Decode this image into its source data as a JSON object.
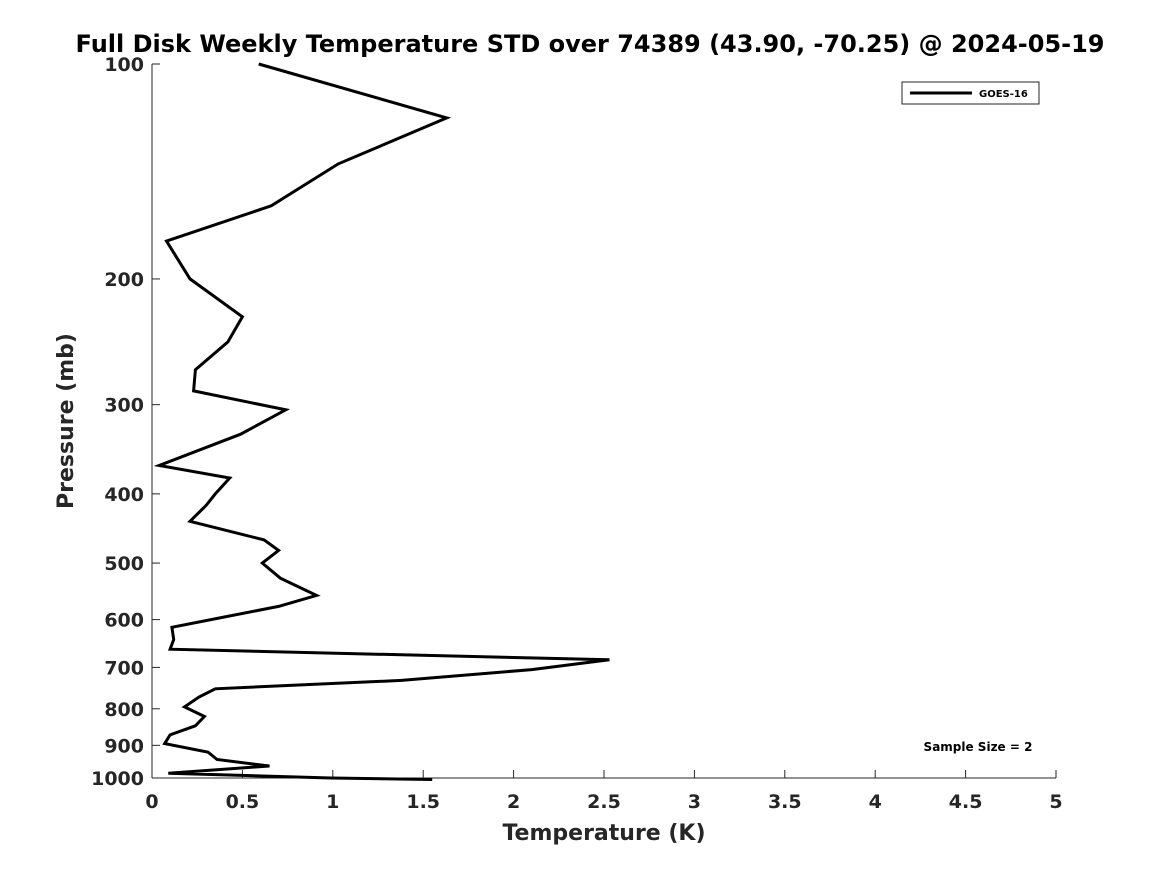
{
  "chart_data": {
    "type": "line",
    "title": "Full Disk Weekly Temperature STD over 74389 (43.90, -70.25) @ 2024-05-19",
    "xlabel": "Temperature (K)",
    "ylabel": "Pressure (mb)",
    "xlim": [
      0,
      5
    ],
    "ylim": [
      100,
      1000
    ],
    "yscale": "log",
    "y_reversed": true,
    "x_ticks": [
      0,
      0.5,
      1,
      1.5,
      2,
      2.5,
      3,
      3.5,
      4,
      4.5,
      5
    ],
    "x_tick_labels": [
      "0",
      "0.5",
      "1",
      "1.5",
      "2",
      "2.5",
      "3",
      "3.5",
      "4",
      "4.5",
      "5"
    ],
    "y_ticks": [
      100,
      200,
      300,
      400,
      500,
      600,
      700,
      800,
      900,
      1000
    ],
    "y_tick_labels": [
      "100",
      "200",
      "300",
      "400",
      "500",
      "600",
      "700",
      "800",
      "900",
      "1000"
    ],
    "grid": false,
    "legend_position": "top-right",
    "annotation": "Sample Size = 2",
    "series": [
      {
        "name": "GOES-16",
        "color": "#000000",
        "x": [
          0.59,
          1.63,
          1.03,
          0.66,
          0.08,
          0.21,
          0.5,
          0.42,
          0.24,
          0.23,
          0.74,
          0.49,
          0.04,
          0.43,
          0.35,
          0.3,
          0.21,
          0.62,
          0.7,
          0.61,
          0.71,
          0.91,
          0.7,
          0.4,
          0.11,
          0.12,
          0.1,
          2.53,
          2.1,
          1.38,
          0.35,
          0.26,
          0.18,
          0.29,
          0.24,
          0.1,
          0.07,
          0.31,
          0.36,
          0.65,
          0.09,
          0.99,
          1.55
        ],
        "y": [
          100,
          119,
          138,
          158,
          177,
          200,
          226,
          245,
          268,
          287,
          305,
          330,
          365,
          380,
          400,
          415,
          437,
          464,
          480,
          500,
          525,
          555,
          575,
          595,
          615,
          640,
          660,
          683,
          705,
          730,
          750,
          770,
          795,
          820,
          845,
          870,
          895,
          920,
          942,
          962,
          985,
          1000,
          1005
        ]
      }
    ]
  }
}
